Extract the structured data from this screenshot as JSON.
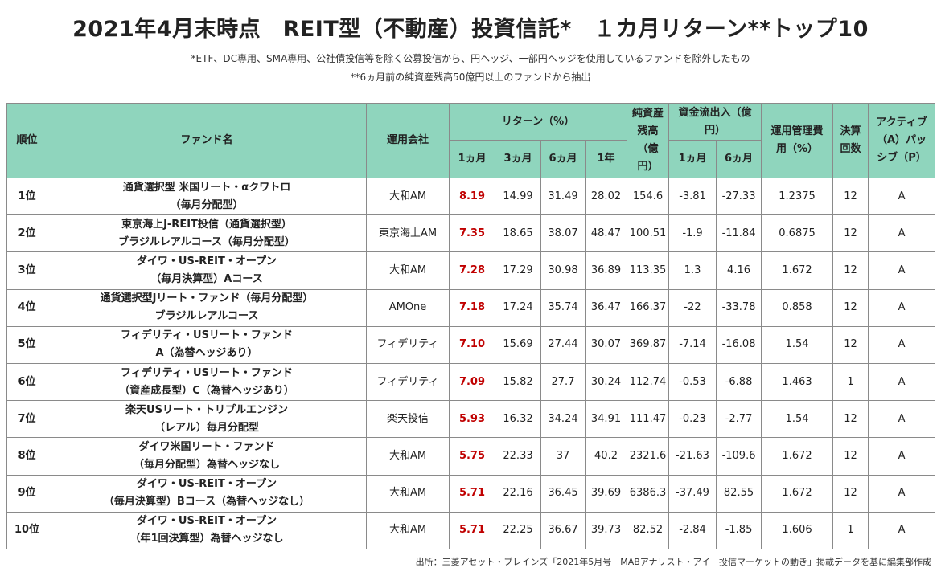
{
  "title": "2021年4月末時点　REIT型（不動産）投資信託*　１カ月リターン**トップ10",
  "notes": {
    "line1": "*ETF、DC専用、SMA専用、公社債投信等を除く公募投信から、円ヘッジ、一部円ヘッジを使用しているファンドを除外したもの",
    "line2": "**6ヵ月前の純資産残高50億円以上のファンドから抽出"
  },
  "headers": {
    "rank": "順位",
    "fund": "ファンド名",
    "company": "運用会社",
    "return": "リターン（%）",
    "return_1m": "1ヵ月",
    "return_3m": "3ヵ月",
    "return_6m": "6ヵ月",
    "return_1y": "1年",
    "nav": "純資産残高（億円）",
    "flow": "資金流出入（億円）",
    "flow_1m": "1ヵ月",
    "flow_6m": "6ヵ月",
    "cost": "運用管理費用（%）",
    "settle": "決算回数",
    "ap": "アクティブ（A）パッシブ（P）"
  },
  "rows": [
    {
      "rank": "1位",
      "fund1": "通貨選択型 米国リート・αクワトロ",
      "fund2": "（毎月分配型）",
      "company": "大和AM",
      "r1m": "8.19",
      "r3m": "14.99",
      "r6m": "31.49",
      "r1y": "28.02",
      "nav": "154.6",
      "f1m": "-3.81",
      "f6m": "-27.33",
      "cost": "1.2375",
      "settle": "12",
      "ap": "A"
    },
    {
      "rank": "2位",
      "fund1": "東京海上J-REIT投信（通貨選択型）",
      "fund2": "ブラジルレアルコース（毎月分配型）",
      "company": "東京海上AM",
      "r1m": "7.35",
      "r3m": "18.65",
      "r6m": "38.07",
      "r1y": "48.47",
      "nav": "100.51",
      "f1m": "-1.9",
      "f6m": "-11.84",
      "cost": "0.6875",
      "settle": "12",
      "ap": "A"
    },
    {
      "rank": "3位",
      "fund1": "ダイワ・US-REIT・オープン",
      "fund2": "（毎月決算型）Aコース",
      "company": "大和AM",
      "r1m": "7.28",
      "r3m": "17.29",
      "r6m": "30.98",
      "r1y": "36.89",
      "nav": "113.35",
      "f1m": "1.3",
      "f6m": "4.16",
      "cost": "1.672",
      "settle": "12",
      "ap": "A"
    },
    {
      "rank": "4位",
      "fund1": "通貨選択型Jリート・ファンド（毎月分配型）",
      "fund2": "ブラジルレアルコース",
      "company": "AMOne",
      "r1m": "7.18",
      "r3m": "17.24",
      "r6m": "35.74",
      "r1y": "36.47",
      "nav": "166.37",
      "f1m": "-22",
      "f6m": "-33.78",
      "cost": "0.858",
      "settle": "12",
      "ap": "A"
    },
    {
      "rank": "5位",
      "fund1": "フィデリティ・USリート・ファンド",
      "fund2": "A（為替ヘッジあり）",
      "company": "フィデリティ",
      "r1m": "7.10",
      "r3m": "15.69",
      "r6m": "27.44",
      "r1y": "30.07",
      "nav": "369.87",
      "f1m": "-7.14",
      "f6m": "-16.08",
      "cost": "1.54",
      "settle": "12",
      "ap": "A"
    },
    {
      "rank": "6位",
      "fund1": "フィデリティ・USリート・ファンド",
      "fund2": "（資産成長型）C（為替ヘッジあり）",
      "company": "フィデリティ",
      "r1m": "7.09",
      "r3m": "15.82",
      "r6m": "27.7",
      "r1y": "30.24",
      "nav": "112.74",
      "f1m": "-0.53",
      "f6m": "-6.88",
      "cost": "1.463",
      "settle": "1",
      "ap": "A"
    },
    {
      "rank": "7位",
      "fund1": "楽天USリート・トリプルエンジン",
      "fund2": "（レアル）毎月分配型",
      "company": "楽天投信",
      "r1m": "5.93",
      "r3m": "16.32",
      "r6m": "34.24",
      "r1y": "34.91",
      "nav": "111.47",
      "f1m": "-0.23",
      "f6m": "-2.77",
      "cost": "1.54",
      "settle": "12",
      "ap": "A"
    },
    {
      "rank": "8位",
      "fund1": "ダイワ米国リート・ファンド",
      "fund2": "（毎月分配型）為替ヘッジなし",
      "company": "大和AM",
      "r1m": "5.75",
      "r3m": "22.33",
      "r6m": "37",
      "r1y": "40.2",
      "nav": "2321.6",
      "f1m": "-21.63",
      "f6m": "-109.6",
      "cost": "1.672",
      "settle": "12",
      "ap": "A"
    },
    {
      "rank": "9位",
      "fund1": "ダイワ・US-REIT・オープン",
      "fund2": "（毎月決算型）Bコース（為替ヘッジなし）",
      "company": "大和AM",
      "r1m": "5.71",
      "r3m": "22.16",
      "r6m": "36.45",
      "r1y": "39.69",
      "nav": "6386.3",
      "f1m": "-37.49",
      "f6m": "82.55",
      "cost": "1.672",
      "settle": "12",
      "ap": "A"
    },
    {
      "rank": "10位",
      "fund1": "ダイワ・US-REIT・オープン",
      "fund2": "（年1回決算型）為替ヘッジなし",
      "company": "大和AM",
      "r1m": "5.71",
      "r3m": "22.25",
      "r6m": "36.67",
      "r1y": "39.73",
      "nav": "82.52",
      "f1m": "-2.84",
      "f6m": "-1.85",
      "cost": "1.606",
      "settle": "1",
      "ap": "A"
    }
  ],
  "source": "出所：三菱アセット・ブレインズ「2021年5月号　MABアナリスト・アイ　投信マーケットの動き」掲載データを基に編集部作成",
  "colors": {
    "header_bg": "#8fd5bd",
    "return_highlight": "#c00000"
  }
}
